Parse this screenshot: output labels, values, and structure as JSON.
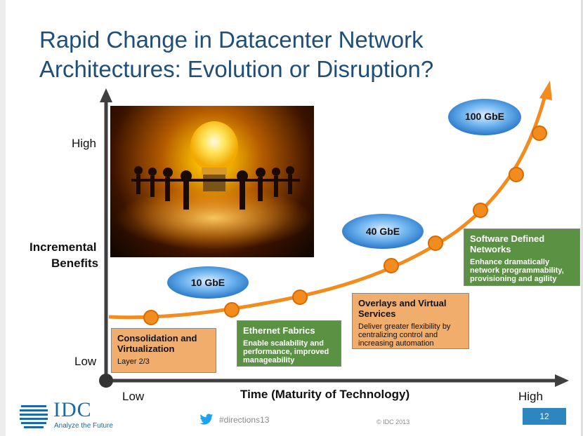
{
  "title": {
    "line1": "Rapid Change in Datacenter Network",
    "line2": "Architectures: Evolution or Disruption?"
  },
  "y_axis": {
    "label_line1": "Incremental",
    "label_line2": "Benefits",
    "high": "High",
    "low": "Low"
  },
  "x_axis": {
    "label": "Time (Maturity of Technology)",
    "low": "Low",
    "high": "High"
  },
  "speed_bubbles": [
    "10 GbE",
    "40 GbE",
    "100 GbE"
  ],
  "stages": [
    {
      "title": "Consolidation and Virtualization",
      "desc": "Layer 2/3",
      "color": "#f0ad6c"
    },
    {
      "title": "Ethernet Fabrics",
      "desc": "Enable scalability and performance, improved manageability",
      "color": "#5a9142"
    },
    {
      "title": "Overlays and Virtual Services",
      "desc": "Deliver greater flexibility by centralizing control and increasing automation",
      "color": "#f0ad6c"
    },
    {
      "title": "Software Defined Networks",
      "desc": "Enhance dramatically network programmability, provisioning and agility",
      "color": "#5a9142"
    }
  ],
  "colors": {
    "curve": "#f28c1e",
    "axis": "#3f3f3f",
    "bubble": "#3d8fd6",
    "title": "#1f4e79"
  },
  "footer": {
    "logo_text": "IDC",
    "logo_tagline": "Analyze the Future",
    "hashtag": "#directions13",
    "copyright": "© IDC 2013",
    "page_number": "12"
  }
}
